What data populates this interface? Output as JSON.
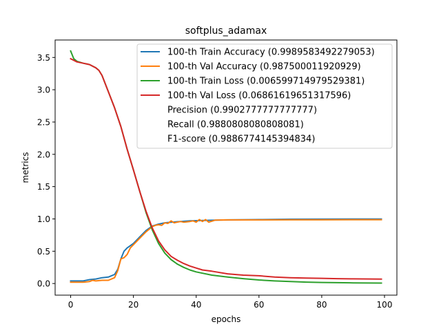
{
  "colors": {
    "train_acc": "#1f77b4",
    "val_acc": "#ff7f0e",
    "train_loss": "#2ca02c",
    "val_loss": "#d62728"
  },
  "chart_data": {
    "type": "line",
    "title": "softplus_adamax",
    "xlabel": "epochs",
    "ylabel": "metrics",
    "xlim": [
      -4.95,
      103.95
    ],
    "ylim": [
      -0.18,
      3.77
    ],
    "grid": false,
    "legend_position": "top-right",
    "x_ticks": [
      0,
      20,
      40,
      60,
      80,
      100
    ],
    "y_ticks": [
      0.0,
      0.5,
      1.0,
      1.5,
      2.0,
      2.5,
      3.0,
      3.5
    ],
    "x_tick_labels": [
      "0",
      "20",
      "40",
      "60",
      "80",
      "100"
    ],
    "y_tick_labels": [
      "0.0",
      "0.5",
      "1.0",
      "1.5",
      "2.0",
      "2.5",
      "3.0",
      "3.5"
    ],
    "legend": [
      "100-th Train Accuracy (0.9989583492279053)",
      "100-th Val Accuracy (0.987500011920929)",
      "100-th Train Loss (0.006599714979529381)",
      "100-th Val Loss (0.06861619651317596)",
      "Precision (0.9902777777777777)",
      "Recall (0.9880808080808081)",
      "F1-score (0.9886774145394834)"
    ],
    "series": [
      {
        "name": "100-th Train Accuracy (0.9989583492279053)",
        "color_key": "train_acc",
        "points": [
          [
            0,
            0.04
          ],
          [
            4,
            0.04
          ],
          [
            6,
            0.06
          ],
          [
            8,
            0.07
          ],
          [
            10,
            0.09
          ],
          [
            12,
            0.1
          ],
          [
            14,
            0.14
          ],
          [
            15,
            0.22
          ],
          [
            16,
            0.38
          ],
          [
            17,
            0.5
          ],
          [
            18,
            0.55
          ],
          [
            20,
            0.62
          ],
          [
            22,
            0.72
          ],
          [
            24,
            0.82
          ],
          [
            26,
            0.89
          ],
          [
            28,
            0.92
          ],
          [
            30,
            0.94
          ],
          [
            32,
            0.95
          ],
          [
            35,
            0.96
          ],
          [
            38,
            0.97
          ],
          [
            42,
            0.975
          ],
          [
            46,
            0.98
          ],
          [
            50,
            0.985
          ],
          [
            60,
            0.99
          ],
          [
            70,
            0.995
          ],
          [
            80,
            0.998
          ],
          [
            99,
            0.9989583492279053
          ]
        ]
      },
      {
        "name": "100-th Val Accuracy (0.987500011920929)",
        "color_key": "val_acc",
        "points": [
          [
            0,
            0.02
          ],
          [
            4,
            0.02
          ],
          [
            6,
            0.03
          ],
          [
            7,
            0.05
          ],
          [
            8,
            0.04
          ],
          [
            10,
            0.05
          ],
          [
            12,
            0.05
          ],
          [
            14,
            0.09
          ],
          [
            15,
            0.2
          ],
          [
            16,
            0.38
          ],
          [
            17,
            0.4
          ],
          [
            18,
            0.45
          ],
          [
            19,
            0.55
          ],
          [
            20,
            0.6
          ],
          [
            22,
            0.7
          ],
          [
            24,
            0.8
          ],
          [
            25,
            0.84
          ],
          [
            26,
            0.88
          ],
          [
            27,
            0.9
          ],
          [
            28,
            0.91
          ],
          [
            29,
            0.9
          ],
          [
            30,
            0.94
          ],
          [
            31,
            0.93
          ],
          [
            32,
            0.97
          ],
          [
            33,
            0.94
          ],
          [
            35,
            0.96
          ],
          [
            36,
            0.95
          ],
          [
            38,
            0.96
          ],
          [
            39,
            0.97
          ],
          [
            40,
            0.95
          ],
          [
            41,
            0.99
          ],
          [
            42,
            0.96
          ],
          [
            43,
            0.99
          ],
          [
            44,
            0.95
          ],
          [
            46,
            0.98
          ],
          [
            50,
            0.985
          ],
          [
            60,
            0.985
          ],
          [
            70,
            0.987
          ],
          [
            80,
            0.987
          ],
          [
            99,
            0.987500011920929
          ]
        ]
      },
      {
        "name": "100-th Train Loss (0.006599714979529381)",
        "color_key": "train_loss",
        "points": [
          [
            0,
            3.6
          ],
          [
            1,
            3.48
          ],
          [
            2,
            3.44
          ],
          [
            4,
            3.41
          ],
          [
            6,
            3.39
          ],
          [
            8,
            3.34
          ],
          [
            9,
            3.3
          ],
          [
            10,
            3.22
          ],
          [
            12,
            2.97
          ],
          [
            14,
            2.72
          ],
          [
            16,
            2.43
          ],
          [
            18,
            2.08
          ],
          [
            20,
            1.76
          ],
          [
            22,
            1.43
          ],
          [
            24,
            1.1
          ],
          [
            26,
            0.83
          ],
          [
            28,
            0.62
          ],
          [
            30,
            0.47
          ],
          [
            32,
            0.37
          ],
          [
            34,
            0.3
          ],
          [
            36,
            0.25
          ],
          [
            38,
            0.21
          ],
          [
            40,
            0.18
          ],
          [
            45,
            0.13
          ],
          [
            50,
            0.1
          ],
          [
            55,
            0.075
          ],
          [
            60,
            0.055
          ],
          [
            65,
            0.04
          ],
          [
            70,
            0.03
          ],
          [
            75,
            0.022
          ],
          [
            80,
            0.016
          ],
          [
            90,
            0.01
          ],
          [
            99,
            0.006599714979529381
          ]
        ]
      },
      {
        "name": "100-th Val Loss (0.06861619651317596)",
        "color_key": "val_loss",
        "points": [
          [
            0,
            3.48
          ],
          [
            2,
            3.43
          ],
          [
            4,
            3.41
          ],
          [
            6,
            3.39
          ],
          [
            8,
            3.34
          ],
          [
            9,
            3.3
          ],
          [
            10,
            3.22
          ],
          [
            12,
            2.97
          ],
          [
            14,
            2.72
          ],
          [
            16,
            2.43
          ],
          [
            18,
            2.08
          ],
          [
            20,
            1.76
          ],
          [
            22,
            1.43
          ],
          [
            24,
            1.12
          ],
          [
            26,
            0.86
          ],
          [
            28,
            0.66
          ],
          [
            30,
            0.52
          ],
          [
            32,
            0.42
          ],
          [
            34,
            0.36
          ],
          [
            36,
            0.31
          ],
          [
            38,
            0.27
          ],
          [
            40,
            0.24
          ],
          [
            42,
            0.21
          ],
          [
            45,
            0.19
          ],
          [
            50,
            0.15
          ],
          [
            55,
            0.13
          ],
          [
            60,
            0.12
          ],
          [
            65,
            0.1
          ],
          [
            70,
            0.09
          ],
          [
            75,
            0.085
          ],
          [
            80,
            0.08
          ],
          [
            85,
            0.075
          ],
          [
            90,
            0.072
          ],
          [
            99,
            0.06861619651317596
          ]
        ]
      }
    ]
  }
}
